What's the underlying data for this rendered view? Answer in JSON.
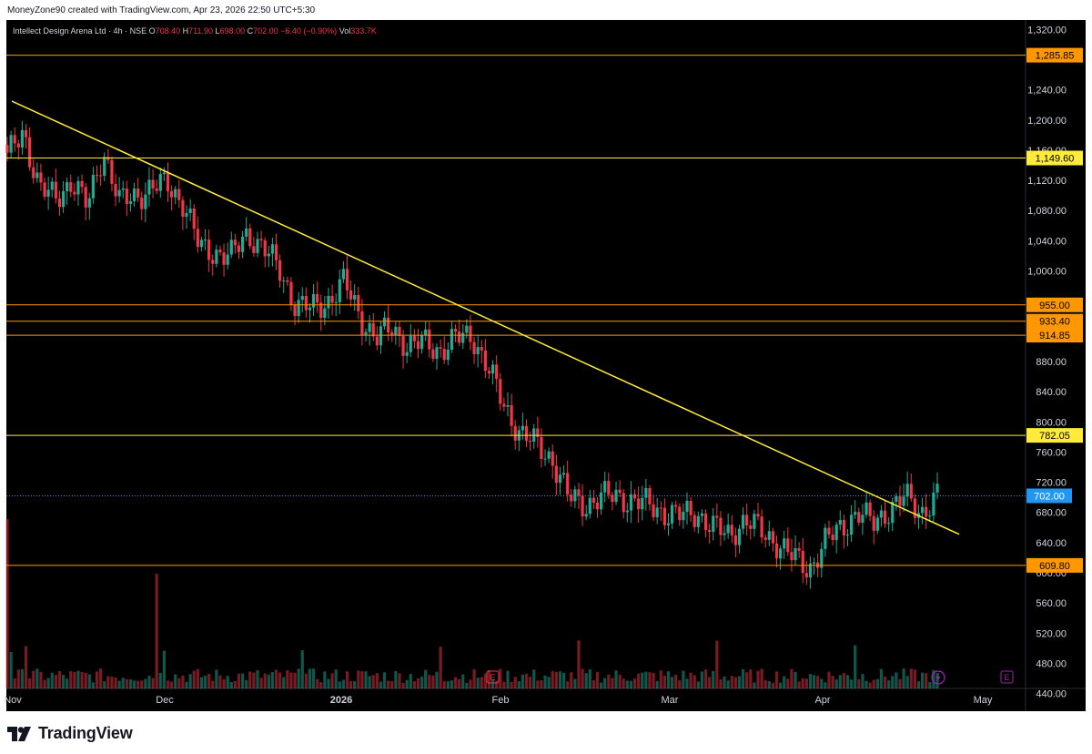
{
  "credit": "MoneyZone90 created with TradingView.com, Apr 23, 2026 22:50 UTC+5:30",
  "brand": "TradingView",
  "symbol": {
    "name": "Intellect Design Arena Ltd · 4h · NSE",
    "o_label": "O",
    "o": "708.40",
    "h_label": "H",
    "h": "711.90",
    "l_label": "L",
    "l": "698.00",
    "c_label": "C",
    "c": "702.00",
    "change": "−6.40 (−0.90%)",
    "vol_label": "Vol",
    "vol": "333.7K"
  },
  "colors": {
    "up": "#22ab94",
    "down": "#f23645",
    "trend": "#ffeb3b",
    "level": "#ff9800",
    "last": "#2196f3"
  },
  "icons": [
    "earnings-icon",
    "lightning-icon"
  ],
  "chart_data": {
    "type": "candlestick",
    "interval": "4h",
    "ylim": [
      440,
      1330
    ],
    "y_ticks": [
      "1,320.00",
      "1,240.00",
      "1,200.00",
      "1,160.00",
      "1,120.00",
      "1,080.00",
      "1,040.00",
      "1,000.00",
      "880.00",
      "840.00",
      "800.00",
      "760.00",
      "720.00",
      "680.00",
      "640.00",
      "600.00",
      "560.00",
      "520.00",
      "480.00",
      "440.00"
    ],
    "x_ticks": [
      "Nov",
      "Dec",
      "2026",
      "Feb",
      "Mar",
      "Apr",
      "May"
    ],
    "horizontal_levels": [
      {
        "value": 1285.85,
        "label": "1,285.85",
        "color": "orange"
      },
      {
        "value": 1149.6,
        "label": "1,149.60",
        "color": "yellow"
      },
      {
        "value": 955.0,
        "label": "955.00",
        "color": "orange"
      },
      {
        "value": 933.4,
        "label": "933.40",
        "color": "orange"
      },
      {
        "value": 914.85,
        "label": "914.85",
        "color": "orange"
      },
      {
        "value": 782.05,
        "label": "782.05",
        "color": "yellow"
      },
      {
        "value": 609.8,
        "label": "609.80",
        "color": "orange"
      }
    ],
    "last_price": {
      "value": 702.0,
      "label": "702.00"
    },
    "trendline": {
      "from": {
        "date": "Nov",
        "price": 1225
      },
      "to": {
        "date": "Apr",
        "price": 651
      }
    },
    "price_path": [
      {
        "date": "Nov",
        "price": 1150
      },
      {
        "date": "Nov",
        "price": 1185
      },
      {
        "date": "Nov",
        "price": 1110
      },
      {
        "date": "Nov",
        "price": 1095
      },
      {
        "date": "Nov",
        "price": 1120
      },
      {
        "date": "Nov",
        "price": 1085
      },
      {
        "date": "Nov",
        "price": 1160
      },
      {
        "date": "Nov",
        "price": 1090
      },
      {
        "date": "Nov",
        "price": 1100
      },
      {
        "date": "Dec",
        "price": 1110
      },
      {
        "date": "Dec",
        "price": 1115
      },
      {
        "date": "Dec",
        "price": 1090
      },
      {
        "date": "Dec",
        "price": 1030
      },
      {
        "date": "Dec",
        "price": 1025
      },
      {
        "date": "Dec",
        "price": 1020
      },
      {
        "date": "Dec",
        "price": 1050
      },
      {
        "date": "Dec",
        "price": 1030
      },
      {
        "date": "Dec",
        "price": 1000
      },
      {
        "date": "Dec",
        "price": 955
      },
      {
        "date": "Dec",
        "price": 950
      },
      {
        "date": "2026",
        "price": 960
      },
      {
        "date": "2026",
        "price": 985
      },
      {
        "date": "2026",
        "price": 940
      },
      {
        "date": "2026",
        "price": 910
      },
      {
        "date": "2026",
        "price": 925
      },
      {
        "date": "2026",
        "price": 900
      },
      {
        "date": "2026",
        "price": 905
      },
      {
        "date": "2026",
        "price": 895
      },
      {
        "date": "2026",
        "price": 910
      },
      {
        "date": "Feb",
        "price": 915
      },
      {
        "date": "Feb",
        "price": 870
      },
      {
        "date": "Feb",
        "price": 820
      },
      {
        "date": "Feb",
        "price": 785
      },
      {
        "date": "Feb",
        "price": 770
      },
      {
        "date": "Feb",
        "price": 750
      },
      {
        "date": "Feb",
        "price": 700
      },
      {
        "date": "Feb",
        "price": 690
      },
      {
        "date": "Feb",
        "price": 700
      },
      {
        "date": "Feb",
        "price": 702
      },
      {
        "date": "Feb",
        "price": 695
      },
      {
        "date": "Feb",
        "price": 690
      },
      {
        "date": "Mar",
        "price": 680
      },
      {
        "date": "Mar",
        "price": 675
      },
      {
        "date": "Mar",
        "price": 680
      },
      {
        "date": "Mar",
        "price": 660
      },
      {
        "date": "Mar",
        "price": 650
      },
      {
        "date": "Mar",
        "price": 670
      },
      {
        "date": "Mar",
        "price": 655
      },
      {
        "date": "Mar",
        "price": 640
      },
      {
        "date": "Mar",
        "price": 620
      },
      {
        "date": "Apr",
        "price": 605
      },
      {
        "date": "Apr",
        "price": 640
      },
      {
        "date": "Apr",
        "price": 660
      },
      {
        "date": "Apr",
        "price": 680
      },
      {
        "date": "Apr",
        "price": 665
      },
      {
        "date": "Apr",
        "price": 685
      },
      {
        "date": "Apr",
        "price": 700
      },
      {
        "date": "Apr",
        "price": 680
      },
      {
        "date": "Apr",
        "price": 702
      }
    ]
  }
}
